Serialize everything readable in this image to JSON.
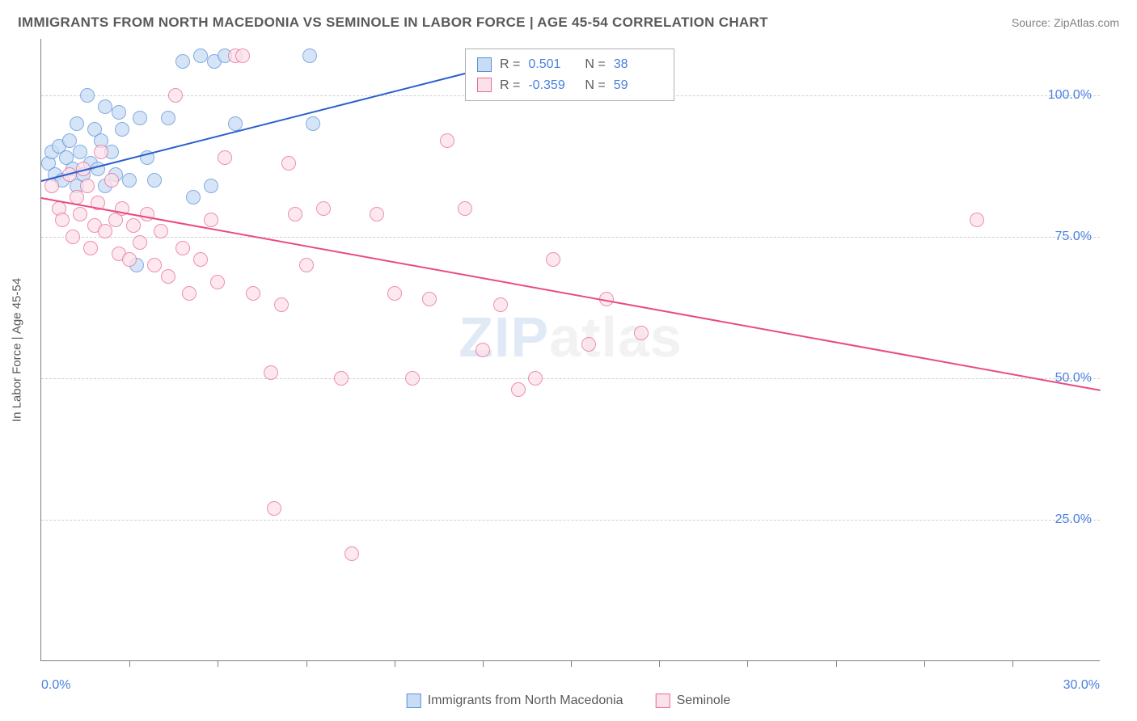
{
  "title": "IMMIGRANTS FROM NORTH MACEDONIA VS SEMINOLE IN LABOR FORCE | AGE 45-54 CORRELATION CHART",
  "source": "Source: ZipAtlas.com",
  "yaxis_title": "In Labor Force | Age 45-54",
  "watermark_a": "ZIP",
  "watermark_b": "atlas",
  "chart": {
    "type": "scatter",
    "xlim": [
      0,
      30
    ],
    "ylim": [
      0,
      110
    ],
    "ytick_values": [
      25,
      50,
      75,
      100
    ],
    "ytick_labels": [
      "25.0%",
      "50.0%",
      "75.0%",
      "100.0%"
    ],
    "xtick_values": [
      2.5,
      5,
      7.5,
      10,
      12.5,
      15,
      17.5,
      20,
      22.5,
      25,
      27.5
    ],
    "xaxis_label_left": "0.0%",
    "xaxis_label_right": "30.0%",
    "background_color": "#ffffff",
    "grid_color": "#d0d0d0",
    "marker_radius": 9,
    "marker_stroke_width": 1,
    "series": [
      {
        "name": "Immigrants from North Macedonia",
        "fill": "#c8ddf5",
        "stroke": "#5a8fd8",
        "r_label": "R =",
        "r_value": "0.501",
        "n_label": "N =",
        "n_value": "38",
        "trend": {
          "x1": 0,
          "y1": 85,
          "x2": 12,
          "y2": 104,
          "color": "#2a5fcf"
        },
        "points": [
          [
            0.2,
            88
          ],
          [
            0.3,
            90
          ],
          [
            0.4,
            86
          ],
          [
            0.5,
            91
          ],
          [
            0.6,
            85
          ],
          [
            0.7,
            89
          ],
          [
            0.8,
            92
          ],
          [
            0.9,
            87
          ],
          [
            1.0,
            95
          ],
          [
            1.0,
            84
          ],
          [
            1.1,
            90
          ],
          [
            1.2,
            86
          ],
          [
            1.3,
            100
          ],
          [
            1.4,
            88
          ],
          [
            1.5,
            94
          ],
          [
            1.6,
            87
          ],
          [
            1.7,
            92
          ],
          [
            1.8,
            84
          ],
          [
            1.8,
            98
          ],
          [
            2.0,
            90
          ],
          [
            2.1,
            86
          ],
          [
            2.2,
            97
          ],
          [
            2.3,
            94
          ],
          [
            2.5,
            85
          ],
          [
            2.7,
            70
          ],
          [
            2.8,
            96
          ],
          [
            3.0,
            89
          ],
          [
            3.2,
            85
          ],
          [
            3.6,
            96
          ],
          [
            4.0,
            106
          ],
          [
            4.3,
            82
          ],
          [
            4.5,
            107
          ],
          [
            4.8,
            84
          ],
          [
            4.9,
            106
          ],
          [
            5.2,
            107
          ],
          [
            5.5,
            95
          ],
          [
            7.6,
            107
          ],
          [
            7.7,
            95
          ]
        ]
      },
      {
        "name": "Seminole",
        "fill": "#fbe1e9",
        "stroke": "#e96a94",
        "r_label": "R =",
        "r_value": "-0.359",
        "n_label": "N =",
        "n_value": "59",
        "trend": {
          "x1": 0,
          "y1": 82,
          "x2": 30,
          "y2": 48,
          "color": "#e94b80"
        },
        "points": [
          [
            0.3,
            84
          ],
          [
            0.5,
            80
          ],
          [
            0.6,
            78
          ],
          [
            0.8,
            86
          ],
          [
            0.9,
            75
          ],
          [
            1.0,
            82
          ],
          [
            1.1,
            79
          ],
          [
            1.2,
            87
          ],
          [
            1.3,
            84
          ],
          [
            1.4,
            73
          ],
          [
            1.5,
            77
          ],
          [
            1.6,
            81
          ],
          [
            1.7,
            90
          ],
          [
            1.8,
            76
          ],
          [
            2.0,
            85
          ],
          [
            2.1,
            78
          ],
          [
            2.2,
            72
          ],
          [
            2.3,
            80
          ],
          [
            2.5,
            71
          ],
          [
            2.6,
            77
          ],
          [
            2.8,
            74
          ],
          [
            3.0,
            79
          ],
          [
            3.2,
            70
          ],
          [
            3.4,
            76
          ],
          [
            3.6,
            68
          ],
          [
            3.8,
            100
          ],
          [
            4.0,
            73
          ],
          [
            4.2,
            65
          ],
          [
            4.5,
            71
          ],
          [
            4.8,
            78
          ],
          [
            5.0,
            67
          ],
          [
            5.2,
            89
          ],
          [
            5.5,
            107
          ],
          [
            5.7,
            107
          ],
          [
            6.0,
            65
          ],
          [
            6.5,
            51
          ],
          [
            6.6,
            27
          ],
          [
            6.8,
            63
          ],
          [
            7.0,
            88
          ],
          [
            7.2,
            79
          ],
          [
            7.5,
            70
          ],
          [
            8.0,
            80
          ],
          [
            8.5,
            50
          ],
          [
            8.8,
            19
          ],
          [
            9.5,
            79
          ],
          [
            10.0,
            65
          ],
          [
            10.5,
            50
          ],
          [
            11.0,
            64
          ],
          [
            11.5,
            92
          ],
          [
            12.0,
            80
          ],
          [
            12.5,
            55
          ],
          [
            13.0,
            63
          ],
          [
            13.5,
            48
          ],
          [
            14.0,
            50
          ],
          [
            14.5,
            71
          ],
          [
            15.5,
            56
          ],
          [
            16.0,
            64
          ],
          [
            17.0,
            58
          ],
          [
            26.5,
            78
          ]
        ]
      }
    ]
  },
  "legend": {
    "series1": "Immigrants from North Macedonia",
    "series2": "Seminole"
  }
}
